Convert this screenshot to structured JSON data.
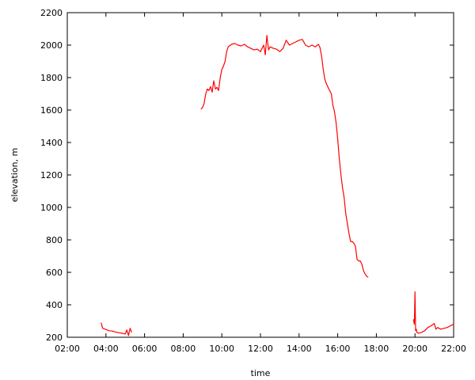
{
  "chart_data": {
    "type": "line",
    "title": "",
    "xlabel": "time",
    "ylabel": "elevation, m",
    "xlim": [
      "02:00",
      "22:00"
    ],
    "ylim": [
      200,
      2200
    ],
    "grid": false,
    "legend": "none",
    "line_color": "#ff0000",
    "x_ticks": [
      "02:00",
      "04:00",
      "06:00",
      "08:00",
      "10:00",
      "12:00",
      "14:00",
      "16:00",
      "18:00",
      "20:00",
      "22:00"
    ],
    "y_ticks": [
      200,
      400,
      600,
      800,
      1000,
      1200,
      1400,
      1600,
      1800,
      2000,
      2200
    ],
    "series": [
      {
        "segments": [
          {
            "x": [
              "03:45",
              "03:50",
              "04:00",
              "04:10",
              "04:20",
              "04:30",
              "04:40",
              "04:50",
              "05:00",
              "05:05",
              "05:10",
              "05:15",
              "05:20"
            ],
            "y": [
              290,
              255,
              248,
              240,
              238,
              232,
              228,
              225,
              220,
              245,
              210,
              255,
              230
            ]
          },
          {
            "x": [
              "08:55",
              "09:00",
              "09:05",
              "09:10",
              "09:15",
              "09:20",
              "09:25",
              "09:30",
              "09:35",
              "09:40",
              "09:45",
              "09:50",
              "09:55",
              "10:00",
              "10:05",
              "10:10",
              "10:15",
              "10:20",
              "10:30",
              "10:40",
              "10:50",
              "11:00",
              "11:10",
              "11:20",
              "11:30",
              "11:40",
              "11:50",
              "12:00",
              "12:10",
              "12:15",
              "12:20",
              "12:25",
              "12:30",
              "12:40",
              "12:50",
              "13:00",
              "13:10",
              "13:20",
              "13:30",
              "13:40",
              "13:50",
              "14:00",
              "14:10",
              "14:20",
              "14:30",
              "14:40",
              "14:50",
              "15:00",
              "15:05",
              "15:10",
              "15:15",
              "15:20",
              "15:25",
              "15:30",
              "15:35",
              "15:40",
              "15:45",
              "15:50",
              "15:55",
              "16:00",
              "16:05",
              "16:10",
              "16:15",
              "16:20",
              "16:25",
              "16:30",
              "16:35",
              "16:40",
              "16:45",
              "16:50",
              "16:55",
              "17:00",
              "17:05",
              "17:10",
              "17:15",
              "17:20",
              "17:25",
              "17:30",
              "17:35"
            ],
            "y": [
              1605,
              1615,
              1640,
              1700,
              1730,
              1720,
              1745,
              1710,
              1780,
              1730,
              1740,
              1720,
              1800,
              1850,
              1870,
              1900,
              1960,
              1990,
              2005,
              2010,
              2000,
              1995,
              2005,
              1990,
              1980,
              1970,
              1975,
              1960,
              2000,
              1940,
              2060,
              1970,
              1990,
              1980,
              1975,
              1960,
              1980,
              2030,
              2000,
              2010,
              2020,
              2030,
              2035,
              2000,
              1990,
              2000,
              1990,
              2005,
              1985,
              1930,
              1850,
              1790,
              1760,
              1740,
              1720,
              1700,
              1630,
              1590,
              1520,
              1420,
              1300,
              1200,
              1120,
              1060,
              960,
              900,
              840,
              790,
              790,
              780,
              760,
              680,
              670,
              670,
              650,
              610,
              590,
              575,
              570
            ]
          },
          {
            "x": [
              "19:55",
              "19:58",
              "20:00",
              "20:02",
              "20:04",
              "20:06",
              "20:10",
              "20:20",
              "20:30",
              "20:40",
              "20:50",
              "21:00",
              "21:05",
              "21:10",
              "21:20",
              "21:30",
              "21:40",
              "21:50",
              "22:00"
            ],
            "y": [
              310,
              280,
              480,
              240,
              250,
              230,
              225,
              230,
              240,
              260,
              270,
              285,
              250,
              260,
              250,
              255,
              260,
              270,
              280
            ]
          }
        ]
      }
    ]
  }
}
